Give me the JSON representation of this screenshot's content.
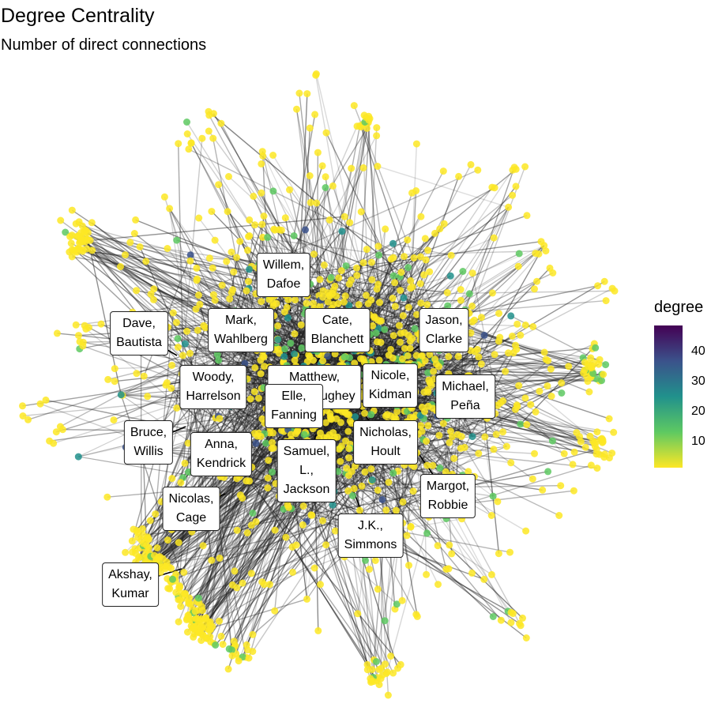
{
  "title": "Degree Centrality",
  "subtitle": "Number of direct connections",
  "legend": {
    "title": "degree",
    "ticks": [
      "40",
      "30",
      "20",
      "10"
    ],
    "colors": [
      "#440154",
      "#3b528b",
      "#21918c",
      "#5ec962",
      "#fde725"
    ]
  },
  "labels": [
    {
      "text": "Willem,\nDafoe"
    },
    {
      "text": "Dave,\nBautista"
    },
    {
      "text": "Mark,\nWahlberg"
    },
    {
      "text": "Cate,\nBlanchett"
    },
    {
      "text": "Jason,\nClarke"
    },
    {
      "text": "Woody,\nHarrelson"
    },
    {
      "text": "Matthew,\nMcConaughey"
    },
    {
      "text": "Nicole,\nKidman"
    },
    {
      "text": "Michael,\nPeña"
    },
    {
      "text": "Elle,\nFanning"
    },
    {
      "text": "Bruce,\nWillis"
    },
    {
      "text": "Anna,\nKendrick"
    },
    {
      "text": "Samuel,\nL.,\nJackson"
    },
    {
      "text": "Nicholas,\nHoult"
    },
    {
      "text": "Margot,\nRobbie"
    },
    {
      "text": "Nicolas,\nCage"
    },
    {
      "text": "J.K.,\nSimmons"
    },
    {
      "text": "Akshay,\nKumar"
    }
  ]
}
